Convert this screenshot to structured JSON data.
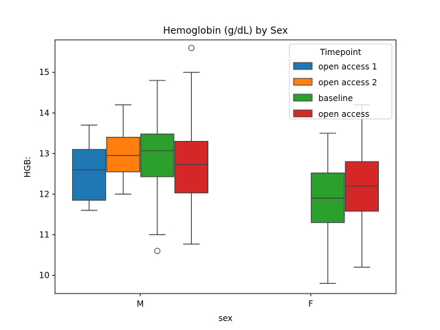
{
  "chart_data": {
    "type": "box",
    "title": "Hemoglobin (g/dL) by Sex",
    "xlabel": "sex",
    "ylabel": "HGB:",
    "categories": [
      "M",
      "F"
    ],
    "ylim": [
      9.55,
      15.8
    ],
    "yticks": [
      10,
      11,
      12,
      13,
      14,
      15
    ],
    "legend": {
      "title": "Timepoint",
      "placement": "top-right"
    },
    "series": [
      {
        "name": "open access 1",
        "color": "#1f77b4",
        "boxes": [
          {
            "category": "M",
            "whislo": 11.6,
            "q1": 11.85,
            "med": 12.6,
            "q3": 13.1,
            "whishi": 13.7,
            "fliers": []
          },
          null
        ]
      },
      {
        "name": "open access 2",
        "color": "#ff7f0e",
        "boxes": [
          {
            "category": "M",
            "whislo": 12.0,
            "q1": 12.55,
            "med": 12.95,
            "q3": 13.4,
            "whishi": 14.2,
            "fliers": []
          },
          null
        ]
      },
      {
        "name": "baseline",
        "color": "#2ca02c",
        "boxes": [
          {
            "category": "M",
            "whislo": 11.0,
            "q1": 12.43,
            "med": 13.07,
            "q3": 13.48,
            "whishi": 14.8,
            "fliers": [
              10.6
            ]
          },
          {
            "category": "F",
            "whislo": 9.8,
            "q1": 11.3,
            "med": 11.9,
            "q3": 12.52,
            "whishi": 13.5,
            "fliers": []
          }
        ]
      },
      {
        "name": "open access",
        "color": "#d62728",
        "boxes": [
          {
            "category": "M",
            "whislo": 10.77,
            "q1": 12.03,
            "med": 12.73,
            "q3": 13.3,
            "whishi": 15.0,
            "fliers": [
              15.6
            ]
          },
          {
            "category": "F",
            "whislo": 10.2,
            "q1": 11.58,
            "med": 12.2,
            "q3": 12.8,
            "whishi": 14.2,
            "fliers": []
          }
        ]
      }
    ]
  }
}
